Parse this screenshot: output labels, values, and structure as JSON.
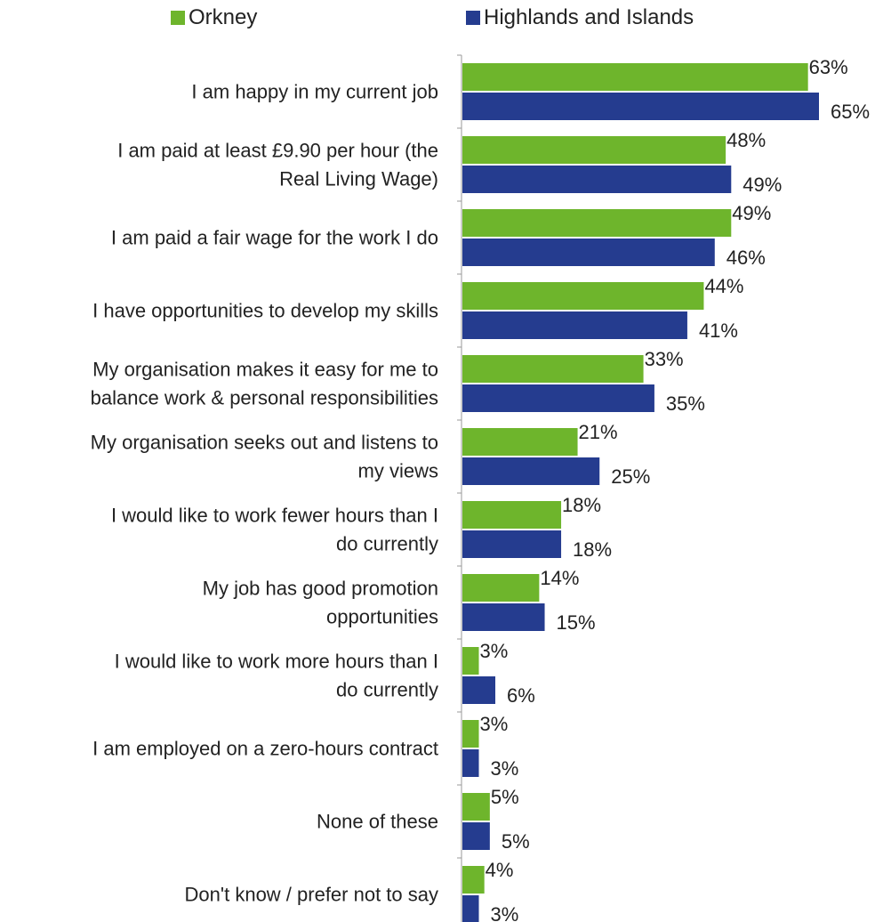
{
  "chart_data": {
    "type": "bar",
    "orientation": "horizontal",
    "categories": [
      "I am happy in my current job",
      "I am paid at least £9.90 per hour (the Real Living Wage)",
      "I am paid a fair wage for the work I do",
      "I have opportunities to develop my skills",
      "My organisation makes it easy for me to balance work & personal responsibilities",
      "My organisation seeks out and listens to my views",
      "I would like to work fewer hours than I do currently",
      "My job has good promotion opportunities",
      "I would like to work more hours than I do currently",
      "I am employed on a zero-hours contract",
      "None of these",
      "Don't know / prefer not to say"
    ],
    "category_lines": [
      [
        "I am happy in my current job"
      ],
      [
        "I am paid at least £9.90 per hour (the",
        "Real Living Wage)"
      ],
      [
        "I am paid a fair wage for the work I do"
      ],
      [
        "I have opportunities to develop my skills"
      ],
      [
        "My organisation makes it easy for me to",
        "balance work & personal responsibilities"
      ],
      [
        "My organisation seeks out and listens to",
        "my views"
      ],
      [
        "I would like to work fewer hours than I",
        "do currently"
      ],
      [
        "My job has good promotion",
        "opportunities"
      ],
      [
        "I would like to work more hours than I",
        "do currently"
      ],
      [
        "I am employed on a zero-hours contract"
      ],
      [
        "None of these"
      ],
      [
        "Don't know / prefer not to say"
      ]
    ],
    "series": [
      {
        "name": "Orkney",
        "color": "#6eb52c",
        "values": [
          63,
          48,
          49,
          44,
          33,
          21,
          18,
          14,
          3,
          3,
          5,
          4
        ],
        "labels": [
          "63%",
          "48%",
          "49%",
          "44%",
          "33%",
          "21%",
          "18%",
          "14%",
          "3%",
          "3%",
          "5%",
          "4%"
        ]
      },
      {
        "name": "Highlands and Islands",
        "color": "#253c8f",
        "values": [
          65,
          49,
          46,
          41,
          35,
          25,
          18,
          15,
          6,
          3,
          5,
          3
        ],
        "labels": [
          "65%",
          "49%",
          "46%",
          "41%",
          "35%",
          "25%",
          "18%",
          "15%",
          "6%",
          "3%",
          "5%",
          "3%"
        ]
      }
    ],
    "value_unit": "%",
    "xlim": [
      0,
      65
    ],
    "grid": false,
    "legend_position": "top"
  }
}
